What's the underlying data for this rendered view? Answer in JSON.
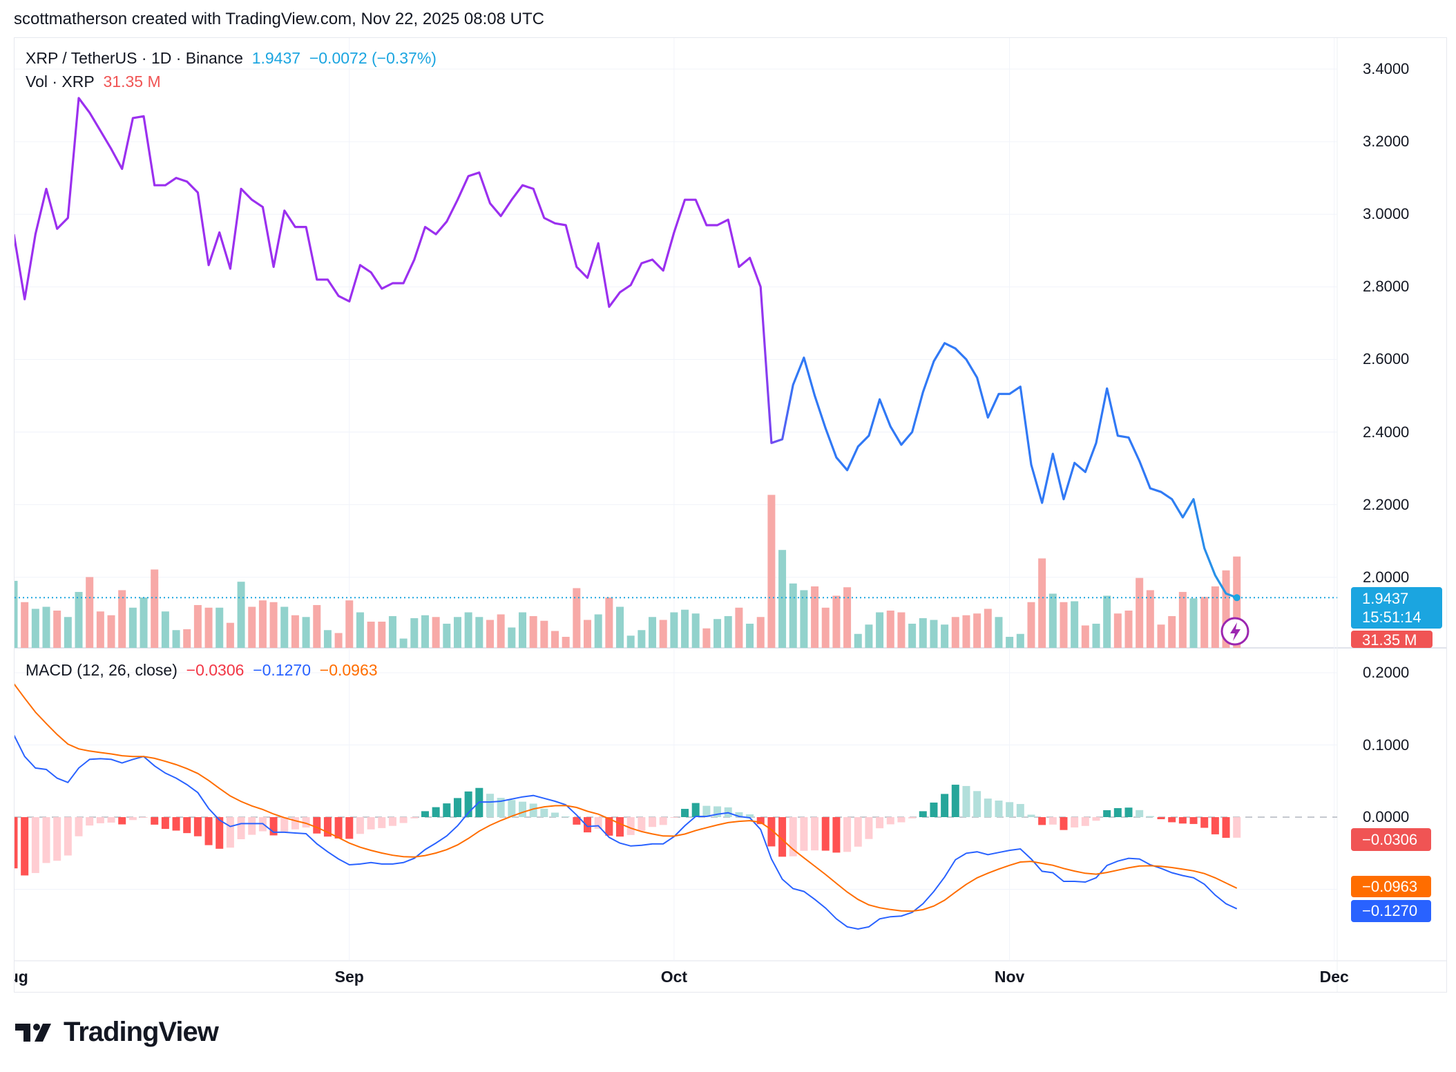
{
  "header": {
    "attribution": "scottmatherson created with TradingView.com, Nov 22, 2025 08:08 UTC"
  },
  "legend": {
    "symbol": "XRP / TetherUS · 1D · Binance",
    "last": "1.9437",
    "change": "−0.0072 (−0.37%)",
    "vol_label": "Vol · XRP",
    "vol_value": "31.35 M",
    "macd_label": "MACD (12, 26, close)",
    "macd_hist": "−0.0306",
    "macd_line": "−0.1270",
    "macd_signal": "−0.0963"
  },
  "price_tag": {
    "price": "1.9437",
    "countdown": "15:51:14",
    "volume": "31.35 M"
  },
  "macd_tags": {
    "hist": "−0.0306",
    "signal": "−0.0963",
    "macd": "−0.1270"
  },
  "brand": "TradingView",
  "colors": {
    "price_line_early": "#9b30ef",
    "price_line_mid": "#3179f5",
    "price_line_late": "#22a0e0",
    "vol_up": "#92d2cc",
    "vol_down": "#f7a9a7",
    "macd": "#2962ff",
    "signal": "#ff6d00",
    "hist_up_strong": "#26a69a",
    "hist_up_weak": "#b2dfdb",
    "hist_down_strong": "#ff5252",
    "hist_down_weak": "#ffcdd2",
    "last_price": "#1ba5e0",
    "vol_tag": "#f05454"
  },
  "chart_data": [
    {
      "type": "line",
      "title": "XRP / TetherUS · 1D · Binance",
      "x_start": "2025-08-01",
      "x_end": "2025-11-22",
      "x_step": "1 day",
      "x_ticks": [
        "Aug",
        "Sep",
        "Oct",
        "Nov",
        "Dec"
      ],
      "y_ticks": [
        "3.4000",
        "3.2000",
        "3.0000",
        "2.8000",
        "2.6000",
        "2.4000",
        "2.2000",
        "2.0000"
      ],
      "ylim": [
        1.93,
        3.45
      ],
      "grid": true,
      "close": [
        2.945,
        2.766,
        2.945,
        3.07,
        2.96,
        2.99,
        3.32,
        3.28,
        3.23,
        3.18,
        3.125,
        3.265,
        3.27,
        3.08,
        3.08,
        3.1,
        3.09,
        3.06,
        2.86,
        2.95,
        2.85,
        3.07,
        3.04,
        3.02,
        2.855,
        3.01,
        2.965,
        2.965,
        2.82,
        2.82,
        2.775,
        2.76,
        2.86,
        2.84,
        2.795,
        2.81,
        2.81,
        2.875,
        2.965,
        2.945,
        2.98,
        3.04,
        3.105,
        3.115,
        3.03,
        2.995,
        3.04,
        3.08,
        3.07,
        2.99,
        2.975,
        2.97,
        2.855,
        2.825,
        2.92,
        2.745,
        2.785,
        2.805,
        2.865,
        2.875,
        2.845,
        2.95,
        3.04,
        3.04,
        2.97,
        2.97,
        2.985,
        2.855,
        2.88,
        2.8,
        2.37,
        2.38,
        2.53,
        2.605,
        2.5,
        2.41,
        2.33,
        2.295,
        2.36,
        2.39,
        2.49,
        2.415,
        2.365,
        2.4,
        2.51,
        2.595,
        2.645,
        2.63,
        2.6,
        2.55,
        2.44,
        2.505,
        2.505,
        2.525,
        2.31,
        2.205,
        2.34,
        2.215,
        2.315,
        2.29,
        2.37,
        2.52,
        2.39,
        2.385,
        2.32,
        2.245,
        2.235,
        2.215,
        2.165,
        2.215,
        2.08,
        2.005,
        1.955,
        1.9437
      ],
      "volume_unit": "M",
      "volume": [
        23.0,
        15.7,
        13.4,
        14.1,
        12.8,
        10.6,
        19.2,
        24.3,
        12.5,
        11.2,
        19.8,
        13.8,
        17.3,
        26.9,
        12.5,
        6.1,
        6.4,
        14.7,
        13.8,
        13.8,
        8.6,
        22.7,
        14.1,
        16.3,
        15.7,
        14.1,
        11.2,
        10.6,
        14.7,
        6.1,
        5.1,
        16.3,
        12.2,
        9.0,
        9.0,
        10.9,
        3.2,
        10.2,
        11.2,
        10.6,
        8.3,
        10.6,
        12.2,
        10.6,
        9.6,
        11.5,
        7.0,
        12.2,
        10.9,
        9.3,
        5.8,
        3.8,
        20.5,
        9.6,
        11.5,
        17.3,
        14.1,
        4.2,
        6.1,
        10.6,
        9.6,
        12.2,
        13.1,
        11.8,
        6.7,
        9.9,
        10.9,
        13.8,
        8.3,
        10.6,
        52.5,
        33.6,
        22.1,
        19.8,
        21.1,
        13.8,
        17.9,
        20.8,
        4.8,
        8.0,
        12.2,
        12.8,
        12.2,
        8.3,
        10.2,
        9.6,
        8.0,
        10.6,
        11.2,
        11.8,
        13.4,
        10.6,
        3.8,
        4.8,
        15.7,
        30.7,
        18.6,
        15.7,
        16.0,
        7.7,
        8.3,
        17.9,
        11.8,
        12.8,
        24.0,
        19.8,
        8.0,
        10.9,
        19.2,
        17.0,
        17.5,
        21.1,
        26.6,
        31.35
      ]
    },
    {
      "type": "line",
      "title": "MACD (12, 26, close)",
      "y_ticks": [
        "0.2000",
        "0.1000",
        "0.0000"
      ],
      "series": [
        {
          "name": "MACD",
          "values": [
            0.114,
            0.084,
            0.068,
            0.066,
            0.054,
            0.048,
            0.068,
            0.08,
            0.081,
            0.08,
            0.075,
            0.08,
            0.084,
            0.071,
            0.061,
            0.054,
            0.045,
            0.034,
            0.012,
            -0.004,
            -0.013,
            -0.009,
            -0.009,
            -0.009,
            -0.021,
            -0.021,
            -0.022,
            -0.023,
            -0.037,
            -0.048,
            -0.058,
            -0.066,
            -0.065,
            -0.063,
            -0.065,
            -0.065,
            -0.063,
            -0.057,
            -0.045,
            -0.036,
            -0.026,
            -0.012,
            0.006,
            0.021,
            0.021,
            0.022,
            0.025,
            0.028,
            0.03,
            0.026,
            0.022,
            0.017,
            0.003,
            -0.013,
            -0.012,
            -0.028,
            -0.036,
            -0.04,
            -0.039,
            -0.037,
            -0.037,
            -0.027,
            -0.012,
            0.001,
            0.001,
            0.004,
            0.006,
            0.001,
            -0.001,
            -0.017,
            -0.058,
            -0.086,
            -0.099,
            -0.103,
            -0.114,
            -0.126,
            -0.141,
            -0.152,
            -0.155,
            -0.152,
            -0.141,
            -0.138,
            -0.137,
            -0.132,
            -0.12,
            -0.103,
            -0.083,
            -0.059,
            -0.05,
            -0.048,
            -0.052,
            -0.049,
            -0.046,
            -0.044,
            -0.058,
            -0.075,
            -0.077,
            -0.089,
            -0.089,
            -0.09,
            -0.084,
            -0.067,
            -0.061,
            -0.057,
            -0.058,
            -0.066,
            -0.071,
            -0.077,
            -0.081,
            -0.084,
            -0.093,
            -0.108,
            -0.12,
            -0.127
          ]
        },
        {
          "name": "Signal",
          "start": 0.185,
          "last": -0.0963
        },
        {
          "name": "Histogram",
          "last": -0.0306
        }
      ]
    }
  ]
}
